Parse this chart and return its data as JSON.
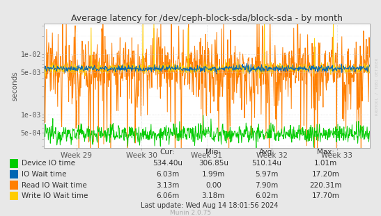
{
  "title": "Average latency for /dev/ceph-block-sda/block-sda - by month",
  "ylabel": "seconds",
  "watermark": "RRDTOOL / TOBI OETIKER",
  "munin_version": "Munin 2.0.75",
  "last_update": "Last update: Wed Aug 14 18:01:56 2024",
  "x_tick_labels": [
    "Week 29",
    "Week 30",
    "Week 31",
    "Week 32",
    "Week 33"
  ],
  "ylim_log_min": 0.00028,
  "ylim_log_max": 0.032,
  "background_color": "#e8e8e8",
  "plot_bg_color": "#ffffff",
  "grid_color": "#cccccc",
  "yticks": [
    0.0005,
    0.001,
    0.005,
    0.01
  ],
  "ytick_labels": [
    "5e-04",
    "1e-03",
    "5e-03",
    "1e-02"
  ],
  "series": [
    {
      "label": "Device IO time",
      "color": "#00cc00",
      "linewidth": 0.7,
      "base_value": 0.00048,
      "noise_scale": 0.18,
      "down_spike_prob": 0.0,
      "up_spike_prob": 0.0
    },
    {
      "label": "IO Wait time",
      "color": "#0066b3",
      "linewidth": 0.7,
      "base_value": 0.0058,
      "noise_scale": 0.06,
      "down_spike_prob": 0.0,
      "up_spike_prob": 0.0
    },
    {
      "label": "Read IO Wait time",
      "color": "#ff7f00",
      "linewidth": 0.7,
      "base_value": 0.0058,
      "noise_scale": 0.55,
      "down_spike_prob": 0.12,
      "up_spike_prob": 0.04
    },
    {
      "label": "Write IO Wait time",
      "color": "#ffcc00",
      "linewidth": 0.7,
      "base_value": 0.0058,
      "noise_scale": 0.1,
      "down_spike_prob": 0.0,
      "up_spike_prob": 0.01
    }
  ],
  "legend_table": {
    "headers": [
      "Cur:",
      "Min:",
      "Avg:",
      "Max:"
    ],
    "rows": [
      [
        "Device IO time",
        "534.40u",
        "306.85u",
        "510.14u",
        "1.01m"
      ],
      [
        "IO Wait time",
        "6.03m",
        "1.99m",
        "5.97m",
        "17.20m"
      ],
      [
        "Read IO Wait time",
        "3.13m",
        "0.00",
        "7.90m",
        "220.31m"
      ],
      [
        "Write IO Wait time",
        "6.06m",
        "3.18m",
        "6.02m",
        "17.70m"
      ]
    ],
    "colors": [
      "#00cc00",
      "#0066b3",
      "#ff7f00",
      "#ffcc00"
    ]
  }
}
